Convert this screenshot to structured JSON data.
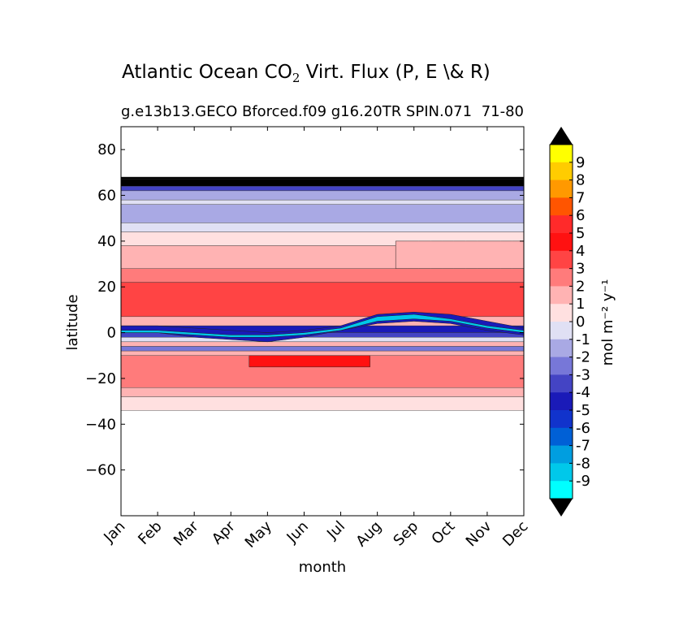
{
  "chart_data": {
    "type": "heatmap",
    "title_prefix": "Atlantic Ocean CO",
    "title_sub": "2",
    "title_suffix": " Virt. Flux (P, E \\& R)",
    "subtitle": "g.e13b13.GECO Bforced.f09 g16.20TR SPIN.071",
    "subtitle_right": "71-80",
    "xlabel": "month",
    "ylabel": "latitude",
    "x_categories": [
      "Jan",
      "Feb",
      "Mar",
      "Apr",
      "May",
      "Jun",
      "Jul",
      "Aug",
      "Sep",
      "Oct",
      "Nov",
      "Dec"
    ],
    "xlim": [
      0,
      11
    ],
    "ylim": [
      -80,
      90
    ],
    "y_ticks": [
      80,
      60,
      40,
      20,
      0,
      -20,
      -40,
      -60
    ],
    "y_tick_labels": [
      "80",
      "60",
      "40",
      "20",
      "0",
      "−20",
      "−40",
      "−60"
    ],
    "data_lat_range": [
      -34,
      68
    ],
    "colorbar": {
      "label": "mol m⁻² y⁻¹",
      "levels": [
        "9",
        "8",
        "7",
        "6",
        "5",
        "4",
        "3",
        "2",
        "1",
        "0",
        "-1",
        "-2",
        "-3",
        "-4",
        "-5",
        "-6",
        "-7",
        "-8",
        "-9"
      ],
      "colors": [
        "#ffff00",
        "#ffcc00",
        "#ff9900",
        "#ff5500",
        "#ff2a2a",
        "#ff1111",
        "#ff4444",
        "#ff7b7b",
        "#ffb3b3",
        "#ffe0e0",
        "#e0e0f4",
        "#a9a9e4",
        "#7777d8",
        "#4444c4",
        "#1a1ab8",
        "#1133cc",
        "#0060d6",
        "#009ee0",
        "#00c8ea",
        "#00ffff"
      ],
      "over_color": "#000000",
      "under_color": "#000000"
    },
    "bands": [
      {
        "lat": [
          67,
          68
        ],
        "value": "9",
        "color": "#000000"
      },
      {
        "lat": [
          64,
          67
        ],
        "value": "9",
        "color": "#000000"
      },
      {
        "lat": [
          62,
          64
        ],
        "value": "-4",
        "color": "#4444c4"
      },
      {
        "lat": [
          58,
          62
        ],
        "value": "-2",
        "color": "#a9a9e4"
      },
      {
        "lat": [
          56,
          58
        ],
        "value": "-1",
        "color": "#e0e0f4"
      },
      {
        "lat": [
          48,
          56
        ],
        "value": "-2",
        "color": "#a9a9e4"
      },
      {
        "lat": [
          44,
          48
        ],
        "value": "-1",
        "color": "#e0e0f4"
      },
      {
        "lat": [
          38,
          44
        ],
        "value": "1",
        "color": "#ffe0e0"
      },
      {
        "lat": [
          28,
          38
        ],
        "value": "1",
        "color": "#ffb3b3"
      },
      {
        "lat": [
          22,
          28
        ],
        "value": "2",
        "color": "#ff7b7b"
      },
      {
        "lat": [
          7,
          22
        ],
        "value": "3",
        "color": "#ff4444"
      },
      {
        "lat": [
          3,
          7
        ],
        "value": "1",
        "color": "#ffb3b3"
      },
      {
        "lat": [
          0,
          3
        ],
        "value": "-5",
        "color": "#1a1ab8"
      },
      {
        "lat": [
          -2,
          0
        ],
        "value": "-3",
        "color": "#4444c4"
      },
      {
        "lat": [
          -4,
          -2
        ],
        "value": "-1",
        "color": "#e0e0f4"
      },
      {
        "lat": [
          -6,
          -4
        ],
        "value": "1",
        "color": "#ffb3b3"
      },
      {
        "lat": [
          -8,
          -6
        ],
        "value": "-2",
        "color": "#7777d8"
      },
      {
        "lat": [
          -10,
          -8
        ],
        "value": "1",
        "color": "#ffb3b3"
      },
      {
        "lat": [
          -24,
          -10
        ],
        "value": "2",
        "color": "#ff7b7b"
      },
      {
        "lat": [
          -28,
          -24
        ],
        "value": "1",
        "color": "#ffb3b3"
      },
      {
        "lat": [
          -34,
          -28
        ],
        "value": "0",
        "color": "#ffe0e0"
      }
    ],
    "features": [
      {
        "name": "itcz-band",
        "value": "-5",
        "color": "#1a1ab8",
        "month": [
          0,
          11
        ],
        "lat_top": [
          3,
          3,
          2,
          1,
          0,
          1,
          3,
          8,
          9,
          8,
          5,
          2
        ],
        "lat_bottom": [
          0,
          0,
          -2,
          -3,
          -4,
          -2,
          1,
          4,
          5,
          4,
          1,
          -1
        ]
      },
      {
        "name": "itcz-core",
        "value": "-9",
        "color": "#00c8ea",
        "month": [
          0,
          11
        ],
        "lat_top": [
          1,
          1,
          0,
          -1,
          -1,
          0,
          2,
          7,
          8,
          6,
          3,
          1
        ],
        "lat_bottom": [
          0,
          0,
          -1,
          -2,
          -2,
          -1,
          1,
          5,
          6,
          5,
          2,
          0
        ]
      },
      {
        "name": "tropical-max",
        "value": "4",
        "color": "#ff1111",
        "month": [
          3.5,
          6.8
        ],
        "lat_top": [
          -10,
          -10,
          -10,
          -10,
          -10,
          -10,
          -10,
          -10,
          -10,
          -10,
          -10,
          -10
        ],
        "lat_bottom": [
          -15,
          -15,
          -15,
          -15,
          -15,
          -15,
          -15,
          -15,
          -15,
          -15,
          -15,
          -15
        ]
      },
      {
        "name": "north-subtropic-2",
        "value": "2",
        "color": "#ffb3b3",
        "month": [
          7.5,
          11
        ],
        "lat_top": [
          40,
          40,
          40,
          40,
          40,
          40,
          40,
          40,
          40,
          40,
          40,
          40
        ],
        "lat_bottom": [
          28,
          28,
          28,
          28,
          28,
          28,
          28,
          28,
          28,
          28,
          28,
          28
        ]
      }
    ]
  }
}
